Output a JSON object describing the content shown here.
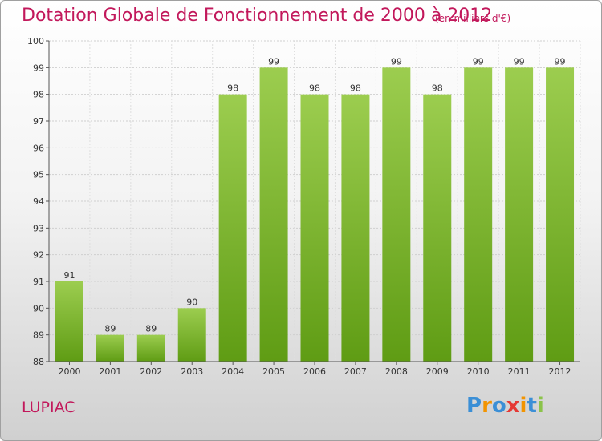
{
  "header": {
    "title": "Dotation Globale de Fonctionnement de 2000 à 2012",
    "subtitle": "(en milliers d'€)"
  },
  "town": "LUPIAC",
  "logo": {
    "letters": [
      {
        "char": "P",
        "color": "#3b8fd6"
      },
      {
        "char": "r",
        "color": "#f29400"
      },
      {
        "char": "o",
        "color": "#3b8fd6"
      },
      {
        "char": "x",
        "color": "#e53935"
      },
      {
        "char": "i",
        "color": "#f29400"
      },
      {
        "char": "t",
        "color": "#3b8fd6"
      },
      {
        "char": "i",
        "color": "#8bc34a"
      }
    ]
  },
  "chart_data": {
    "type": "bar",
    "categories": [
      "2000",
      "2001",
      "2002",
      "2003",
      "2004",
      "2005",
      "2006",
      "2007",
      "2008",
      "2009",
      "2010",
      "2011",
      "2012"
    ],
    "values": [
      91,
      89,
      89,
      90,
      98,
      99,
      98,
      98,
      99,
      98,
      99,
      99,
      99
    ],
    "ylim": [
      88,
      100
    ],
    "yticks": [
      88,
      89,
      90,
      91,
      92,
      93,
      94,
      95,
      96,
      97,
      98,
      99,
      100
    ],
    "grid": true,
    "bar_color": "#7cb82f",
    "title": "Dotation Globale de Fonctionnement de 2000 à 2012",
    "subtitle": "(en milliers d'€)",
    "xlabel": "",
    "ylabel": ""
  }
}
